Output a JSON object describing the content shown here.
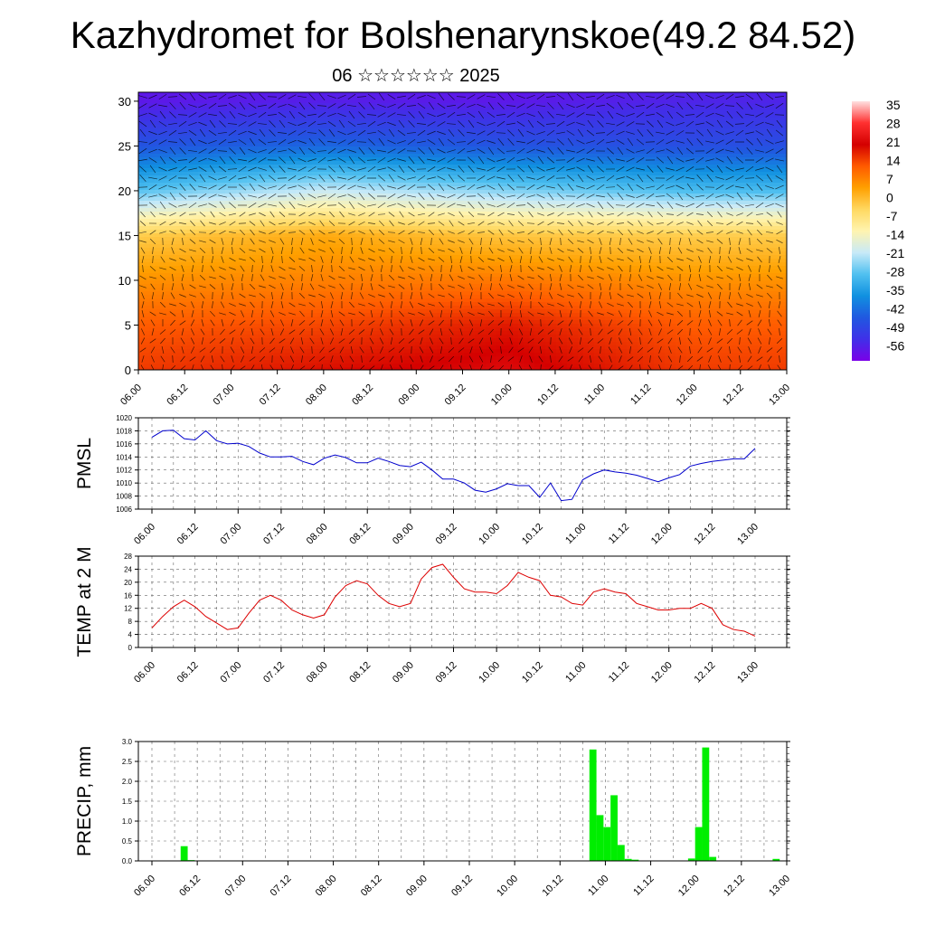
{
  "title": "Kazhydromet for Bolshenarynskoe(49.2 84.52)",
  "subtitle": "06 ☆☆☆☆☆☆ 2025",
  "time_ticks": [
    "06.00",
    "06.12",
    "07.00",
    "07.12",
    "08.00",
    "08.12",
    "09.00",
    "09.12",
    "10.00",
    "10.12",
    "11.00",
    "11.12",
    "12.00",
    "12.12",
    "13.00"
  ],
  "colorbar": {
    "labels": [
      "35",
      "28",
      "21",
      "14",
      "7",
      "0",
      "-7",
      "-14",
      "-21",
      "-28",
      "-35",
      "-42",
      "-49",
      "-56"
    ],
    "stops": [
      "#ffe0e0",
      "#ff3030",
      "#d40000",
      "#ff5a00",
      "#ffa000",
      "#ffd860",
      "#fff4b0",
      "#c8eaf8",
      "#50c0f0",
      "#1090e0",
      "#2058e0",
      "#4030e8",
      "#7a00e8"
    ]
  },
  "chart_data": [
    {
      "type": "heatmap",
      "title": "Kazhydromet for Bolshenarynskoe(49.2 84.52)",
      "subtitle": "06 ☆☆☆☆☆☆ 2025",
      "x_ticks": [
        "06.00",
        "06.12",
        "07.00",
        "07.12",
        "08.00",
        "08.12",
        "09.00",
        "09.12",
        "10.00",
        "10.12",
        "11.00",
        "11.12",
        "12.00",
        "12.12",
        "13.00"
      ],
      "y_ticks": [
        0,
        5,
        10,
        15,
        20,
        25,
        30
      ],
      "ylim": [
        0,
        31
      ],
      "colorbar_labels": [
        35,
        28,
        21,
        14,
        7,
        0,
        -7,
        -14,
        -21,
        -28,
        -35,
        -42,
        -49,
        -56
      ],
      "overlay": "wind barbs",
      "temperature_profile": [
        {
          "time": "06.00",
          "levels": [
            0,
            5,
            10,
            15,
            20,
            25,
            30
          ],
          "values": [
            14,
            11,
            5,
            -3,
            -28,
            -45,
            -56
          ]
        },
        {
          "time": "08.00",
          "levels": [
            0,
            5,
            10,
            15,
            20,
            25,
            30
          ],
          "values": [
            18,
            13,
            7,
            2,
            -20,
            -42,
            -55
          ]
        },
        {
          "time": "10.00",
          "levels": [
            0,
            5,
            10,
            15,
            20,
            25,
            30
          ],
          "values": [
            21,
            17,
            8,
            -2,
            -25,
            -45,
            -56
          ]
        },
        {
          "time": "12.00",
          "levels": [
            0,
            5,
            10,
            15,
            20,
            25,
            30
          ],
          "values": [
            14,
            11,
            5,
            -3,
            -29,
            -46,
            -54
          ]
        }
      ]
    },
    {
      "type": "line",
      "ylabel": "PMSL",
      "ylim": [
        1006,
        1020
      ],
      "y_ticks": [
        1006,
        1008,
        1010,
        1012,
        1014,
        1016,
        1018,
        1020
      ],
      "x_ticks": [
        "06.00",
        "06.12",
        "07.00",
        "07.12",
        "08.00",
        "08.12",
        "09.00",
        "09.12",
        "10.00",
        "10.12",
        "11.00",
        "11.12",
        "12.00",
        "12.12",
        "13.00"
      ],
      "color": "#0000cc",
      "series": [
        {
          "values": [
            1017.0,
            1018.0,
            1018.1,
            1016.8,
            1016.6,
            1018.0,
            1016.5,
            1016.0,
            1016.1,
            1015.6,
            1014.6,
            1014.0,
            1014.0,
            1014.1,
            1013.3,
            1012.8,
            1013.8,
            1014.3,
            1013.9,
            1013.1,
            1013.1,
            1013.8,
            1013.3,
            1012.7,
            1012.5,
            1013.2,
            1012.0,
            1010.6,
            1010.6,
            1010.0,
            1008.9,
            1008.6,
            1009.1,
            1009.9,
            1009.6,
            1009.6,
            1007.8,
            1010.0,
            1007.3,
            1007.5,
            1010.5,
            1011.4,
            1012.0,
            1011.7,
            1011.5,
            1011.2,
            1010.7,
            1010.2,
            1010.8,
            1011.3,
            1012.6,
            1013.0,
            1013.3,
            1013.5,
            1013.7,
            1013.7,
            1015.3
          ]
        }
      ]
    },
    {
      "type": "line",
      "ylabel": "TEMP at 2 M",
      "ylim": [
        0,
        28
      ],
      "y_ticks": [
        0,
        4,
        8,
        12,
        16,
        20,
        24,
        28
      ],
      "x_ticks": [
        "06.00",
        "06.12",
        "07.00",
        "07.12",
        "08.00",
        "08.12",
        "09.00",
        "09.12",
        "10.00",
        "10.12",
        "11.00",
        "11.12",
        "12.00",
        "12.12",
        "13.00"
      ],
      "color": "#dd0000",
      "series": [
        {
          "values": [
            6.0,
            9.5,
            12.5,
            14.5,
            12.5,
            9.5,
            7.5,
            5.5,
            6.0,
            10.5,
            14.5,
            16.0,
            14.5,
            11.5,
            10.0,
            9.0,
            10.0,
            15.5,
            19.0,
            20.5,
            19.5,
            16.0,
            13.5,
            12.5,
            13.5,
            21.0,
            24.5,
            25.5,
            21.5,
            18.0,
            17.0,
            17.0,
            16.5,
            19.0,
            23.0,
            21.5,
            20.5,
            16.0,
            15.5,
            13.5,
            13.0,
            17.0,
            18.0,
            17.0,
            16.5,
            13.5,
            12.5,
            11.5,
            11.5,
            12.0,
            12.0,
            13.5,
            12.0,
            7.0,
            5.5,
            5.0,
            3.5
          ]
        }
      ]
    },
    {
      "type": "bar",
      "ylabel": "PRECIP, mm",
      "ylim": [
        0,
        3.0
      ],
      "y_ticks": [
        0.0,
        0.5,
        1.0,
        1.5,
        2.0,
        2.5,
        3.0
      ],
      "x_ticks": [
        "06.00",
        "06.12",
        "07.00",
        "07.12",
        "08.00",
        "08.12",
        "09.00",
        "09.12",
        "10.00",
        "10.12",
        "11.00",
        "11.12",
        "12.00",
        "12.12",
        "13.00"
      ],
      "color": "#00ee00",
      "series": [
        {
          "values": [
            0,
            0,
            0,
            0,
            0,
            0,
            0.37,
            0.02,
            0,
            0,
            0,
            0,
            0,
            0,
            0,
            0,
            0,
            0,
            0,
            0,
            0,
            0,
            0,
            0,
            0,
            0,
            0,
            0,
            0,
            0,
            0,
            0,
            0,
            0,
            0,
            0,
            0,
            0,
            0,
            0,
            0,
            0,
            0,
            0,
            0,
            0,
            0,
            0,
            0,
            0,
            0,
            0,
            0,
            0,
            0,
            0,
            0,
            0,
            0,
            0,
            0,
            0,
            0,
            0,
            2.8,
            1.15,
            0.85,
            1.65,
            0.4,
            0.05,
            0.03,
            0,
            0,
            0,
            0,
            0,
            0,
            0,
            0.06,
            0.85,
            2.85,
            0.1,
            0,
            0,
            0,
            0,
            0,
            0,
            0,
            0,
            0.05,
            0
          ]
        }
      ]
    }
  ]
}
